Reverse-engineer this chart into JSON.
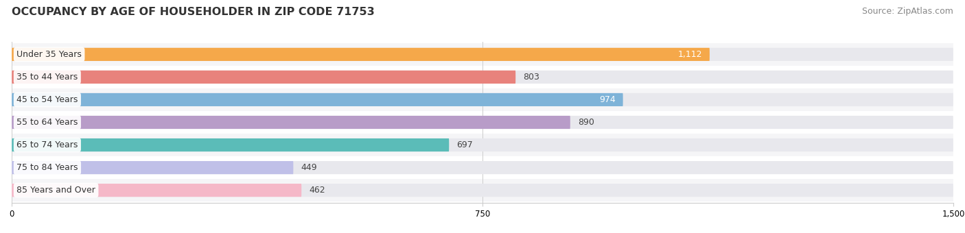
{
  "title": "OCCUPANCY BY AGE OF HOUSEHOLDER IN ZIP CODE 71753",
  "source": "Source: ZipAtlas.com",
  "categories": [
    "Under 35 Years",
    "35 to 44 Years",
    "45 to 54 Years",
    "55 to 64 Years",
    "65 to 74 Years",
    "75 to 84 Years",
    "85 Years and Over"
  ],
  "values": [
    1112,
    803,
    974,
    890,
    697,
    449,
    462
  ],
  "bar_colors": [
    "#F5A84A",
    "#E8827C",
    "#7EB3D8",
    "#B89CC8",
    "#5BBCB8",
    "#C0C0E8",
    "#F5B8C8"
  ],
  "track_color": "#E8E8ED",
  "xlim": [
    0,
    1500
  ],
  "xticks": [
    0,
    750,
    1500
  ],
  "title_fontsize": 11.5,
  "source_fontsize": 9,
  "label_fontsize": 9,
  "value_fontsize": 9,
  "background_color": "#FFFFFF",
  "bar_height": 0.58,
  "row_bg_colors": [
    "#F5F5F7",
    "#FFFFFF"
  ],
  "value_inside": [
    true,
    false,
    true,
    false,
    false,
    false,
    false
  ],
  "value_color_inside": "#FFFFFF",
  "value_color_outside": "#444444"
}
